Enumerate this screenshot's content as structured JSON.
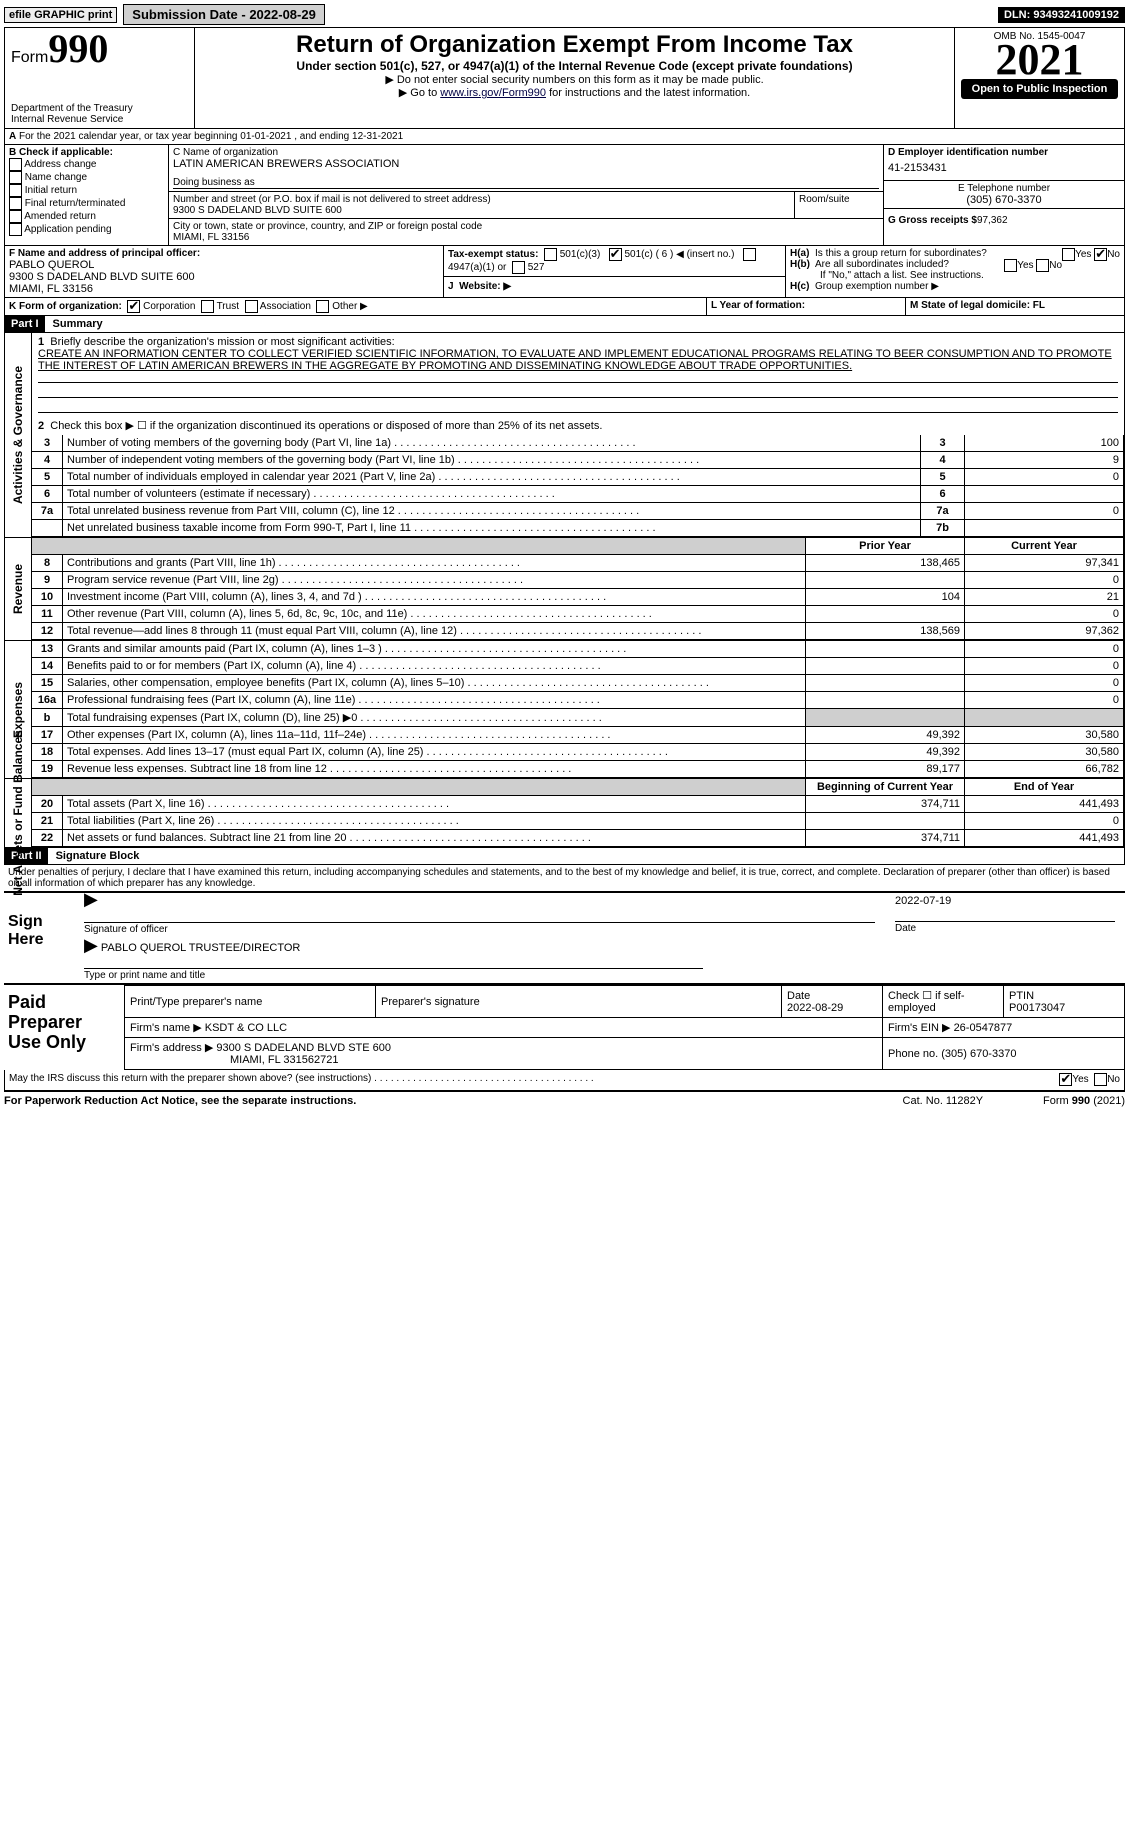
{
  "top": {
    "efile": "efile GRAPHIC print",
    "submission": "Submission Date - 2022-08-29",
    "dln": "DLN: 93493241009192"
  },
  "hdr": {
    "form_word": "Form",
    "form_no": "990",
    "title": "Return of Organization Exempt From Income Tax",
    "sub1": "Under section 501(c), 527, or 4947(a)(1) of the Internal Revenue Code (except private foundations)",
    "sub2": "▶ Do not enter social security numbers on this form as it may be made public.",
    "sub3_pre": "▶ Go to ",
    "sub3_link": "www.irs.gov/Form990",
    "sub3_post": " for instructions and the latest information.",
    "omb": "OMB No. 1545-0047",
    "year": "2021",
    "open": "Open to Public Inspection",
    "dept": "Department of the Treasury",
    "irs": "Internal Revenue Service"
  },
  "a": {
    "line": "For the 2021 calendar year, or tax year beginning 01-01-2021     , and ending 12-31-2021",
    "b_label": "B Check if applicable:",
    "b_items": [
      "Address change",
      "Name change",
      "Initial return",
      "Final return/terminated",
      "Amended return",
      "Application pending"
    ],
    "c_label": "C Name of organization",
    "c_name": "LATIN AMERICAN BREWERS ASSOCIATION",
    "dba": "Doing business as",
    "addr_label": "Number and street (or P.O. box if mail is not delivered to street address)",
    "room": "Room/suite",
    "addr": "9300 S DADELAND BLVD SUITE 600",
    "city_label": "City or town, state or province, country, and ZIP or foreign postal code",
    "city": "MIAMI, FL  33156",
    "d_lbl": "D Employer identification number",
    "d_val": "41-2153431",
    "e_lbl": "E Telephone number",
    "e_val": "(305) 670-3370",
    "g_lbl": "G Gross receipts $",
    "g_val": "97,362",
    "f_lbl": "F  Name and address of principal officer:",
    "f_name": "PABLO QUEROL",
    "f_addr1": "9300 S DADELAND BLVD SUITE 600",
    "f_addr2": "MIAMI, FL  33156",
    "ha": "Is this a group return for subordinates?",
    "hb": "Are all subordinates included?",
    "hif": "If \"No,\" attach a list. See instructions.",
    "hc": "Group exemption number ▶",
    "yes": "Yes",
    "no": "No",
    "i_lbl": "Tax-exempt status:",
    "i_1": "501(c)(3)",
    "i_2": "501(c) ( 6 ) ◀ (insert no.)",
    "i_3": "4947(a)(1) or",
    "i_4": "527",
    "j_lbl": "Website: ▶",
    "k_lbl": "K Form of organization:",
    "k_1": "Corporation",
    "k_2": "Trust",
    "k_3": "Association",
    "k_4": "Other ▶",
    "l_lbl": "L Year of formation:",
    "m_lbl": "M State of legal domicile: FL",
    "ha_lbl": "H(a)",
    "hb_lbl": "H(b)",
    "hc_lbl": "H(c)"
  },
  "p1": {
    "part": "Part I",
    "title": "Summary",
    "q1": "Briefly describe the organization's mission or most significant activities:",
    "mission": "CREATE AN INFORMATION CENTER TO COLLECT VERIFIED SCIENTIFIC INFORMATION, TO EVALUATE AND IMPLEMENT EDUCATIONAL PROGRAMS RELATING TO BEER CONSUMPTION AND TO PROMOTE THE INTEREST OF LATIN AMERICAN BREWERS IN THE AGGREGATE BY PROMOTING AND DISSEMINATING KNOWLEDGE ABOUT TRADE OPPORTUNITIES.",
    "q2": "Check this box ▶ ☐  if the organization discontinued its operations or disposed of more than 25% of its net assets.",
    "lines_gov": [
      {
        "n": "3",
        "t": "Number of voting members of the governing body (Part VI, line 1a)",
        "b": "3",
        "v": "100"
      },
      {
        "n": "4",
        "t": "Number of independent voting members of the governing body (Part VI, line 1b)",
        "b": "4",
        "v": "9"
      },
      {
        "n": "5",
        "t": "Total number of individuals employed in calendar year 2021 (Part V, line 2a)",
        "b": "5",
        "v": "0"
      },
      {
        "n": "6",
        "t": "Total number of volunteers (estimate if necessary)",
        "b": "6",
        "v": ""
      },
      {
        "n": "7a",
        "t": "Total unrelated business revenue from Part VIII, column (C), line 12",
        "b": "7a",
        "v": "0"
      },
      {
        "n": "",
        "t": "Net unrelated business taxable income from Form 990-T, Part I, line 11",
        "b": "7b",
        "v": ""
      }
    ],
    "prior": "Prior Year",
    "curr": "Current Year",
    "rev": [
      {
        "n": "8",
        "t": "Contributions and grants (Part VIII, line 1h)",
        "p": "138,465",
        "c": "97,341"
      },
      {
        "n": "9",
        "t": "Program service revenue (Part VIII, line 2g)",
        "p": "",
        "c": "0"
      },
      {
        "n": "10",
        "t": "Investment income (Part VIII, column (A), lines 3, 4, and 7d )",
        "p": "104",
        "c": "21"
      },
      {
        "n": "11",
        "t": "Other revenue (Part VIII, column (A), lines 5, 6d, 8c, 9c, 10c, and 11e)",
        "p": "",
        "c": "0"
      },
      {
        "n": "12",
        "t": "Total revenue—add lines 8 through 11 (must equal Part VIII, column (A), line 12)",
        "p": "138,569",
        "c": "97,362"
      }
    ],
    "exp": [
      {
        "n": "13",
        "t": "Grants and similar amounts paid (Part IX, column (A), lines 1–3 )",
        "p": "",
        "c": "0"
      },
      {
        "n": "14",
        "t": "Benefits paid to or for members (Part IX, column (A), line 4)",
        "p": "",
        "c": "0"
      },
      {
        "n": "15",
        "t": "Salaries, other compensation, employee benefits (Part IX, column (A), lines 5–10)",
        "p": "",
        "c": "0"
      },
      {
        "n": "16a",
        "t": "Professional fundraising fees (Part IX, column (A), line 11e)",
        "p": "",
        "c": "0"
      },
      {
        "n": "b",
        "t": "Total fundraising expenses (Part IX, column (D), line 25) ▶0",
        "p": "grey",
        "c": "grey"
      },
      {
        "n": "17",
        "t": "Other expenses (Part IX, column (A), lines 11a–11d, 11f–24e)",
        "p": "49,392",
        "c": "30,580"
      },
      {
        "n": "18",
        "t": "Total expenses. Add lines 13–17 (must equal Part IX, column (A), line 25)",
        "p": "49,392",
        "c": "30,580"
      },
      {
        "n": "19",
        "t": "Revenue less expenses. Subtract line 18 from line 12",
        "p": "89,177",
        "c": "66,782"
      }
    ],
    "bal_hdr_l": "Beginning of Current Year",
    "bal_hdr_r": "End of Year",
    "bal": [
      {
        "n": "20",
        "t": "Total assets (Part X, line 16)",
        "p": "374,711",
        "c": "441,493"
      },
      {
        "n": "21",
        "t": "Total liabilities (Part X, line 26)",
        "p": "",
        "c": "0"
      },
      {
        "n": "22",
        "t": "Net assets or fund balances. Subtract line 21 from line 20",
        "p": "374,711",
        "c": "441,493"
      }
    ],
    "sec_gov": "Activities & Governance",
    "sec_rev": "Revenue",
    "sec_exp": "Expenses",
    "sec_bal": "Net Assets or Fund Balances"
  },
  "p2": {
    "part": "Part II",
    "title": "Signature Block",
    "decl": "Under penalties of perjury, I declare that I have examined this return, including accompanying schedules and statements, and to the best of my knowledge and belief, it is true, correct, and complete. Declaration of preparer (other than officer) is based on all information of which preparer has any knowledge.",
    "sign": "Sign Here",
    "sig_officer": "Signature of officer",
    "date": "Date",
    "sig_date": "2022-07-19",
    "name": "PABLO QUEROL  TRUSTEE/DIRECTOR",
    "name_lbl": "Type or print name and title",
    "paid": "Paid Preparer Use Only",
    "pp_name_lbl": "Print/Type preparer's name",
    "pp_sig_lbl": "Preparer's signature",
    "pp_date": "2022-08-29",
    "pp_check": "Check ☐ if self-employed",
    "ptin_lbl": "PTIN",
    "ptin": "P00173047",
    "firm_lbl": "Firm's name     ▶",
    "firm": "KSDT & CO LLC",
    "ein_lbl": "Firm's EIN ▶",
    "ein": "26-0547877",
    "fa_lbl": "Firm's address ▶",
    "fa1": "9300 S DADELAND BLVD STE 600",
    "fa2": "MIAMI, FL  331562721",
    "ph_lbl": "Phone no.",
    "ph": "(305) 670-3370",
    "may": "May the IRS discuss this return with the preparer shown above? (see instructions)",
    "foot_l": "For Paperwork Reduction Act Notice, see the separate instructions.",
    "foot_c": "Cat. No. 11282Y",
    "foot_r": "Form 990 (2021)",
    "date_lbl": "Date"
  }
}
